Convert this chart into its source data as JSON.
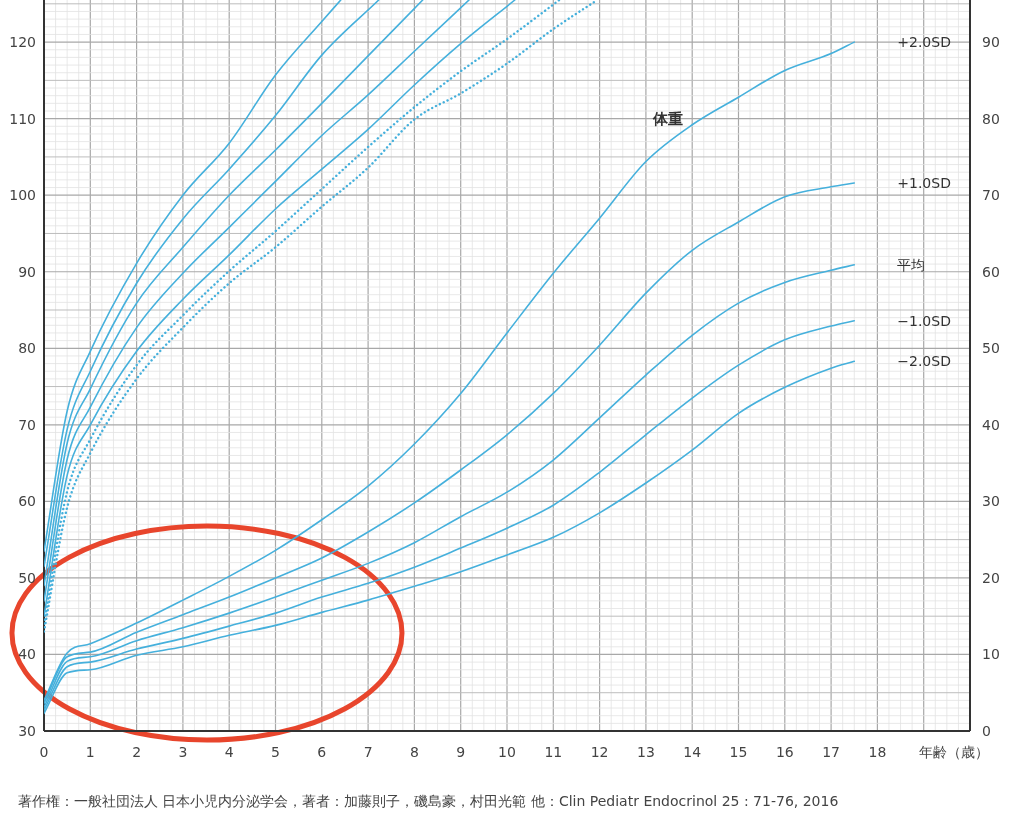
{
  "chart_data": {
    "type": "line",
    "xlabel": "年齢（歳）",
    "xlim": [
      0,
      20
    ],
    "xticks": [
      0,
      1,
      2,
      3,
      4,
      5,
      6,
      7,
      8,
      9,
      10,
      11,
      12,
      13,
      14,
      15,
      16,
      17,
      18
    ],
    "ylim": [
      30,
      125.5
    ],
    "yticks": [
      30,
      40,
      50,
      60,
      70,
      80,
      90,
      100,
      110,
      120
    ],
    "y2lim": [
      0,
      95.5
    ],
    "y2ticks": [
      0,
      10,
      20,
      30,
      40,
      50,
      60,
      70,
      80,
      90
    ],
    "grid": true,
    "series": [
      {
        "color": "#45b0dc",
        "line_style": "solid",
        "x": [
          0,
          0.5,
          1,
          2,
          3,
          4,
          5,
          6,
          6.41
        ],
        "values": [
          53.5,
          71.8,
          79.6,
          91.1,
          100.0,
          106.8,
          115.7,
          122.7,
          125.5
        ]
      },
      {
        "color": "#45b0dc",
        "line_style": "solid",
        "x": [
          0,
          0.5,
          1,
          2,
          3,
          4,
          5,
          6,
          7.23
        ],
        "values": [
          51.5,
          69.4,
          77.0,
          88.5,
          96.9,
          103.4,
          110.4,
          118.3,
          125.5
        ]
      },
      {
        "color": "#45b0dc",
        "line_style": "solid",
        "x": [
          0,
          0.5,
          1,
          2,
          3,
          4,
          5,
          6,
          7,
          8.18
        ],
        "values": [
          49.0,
          67.6,
          74.7,
          85.9,
          93.2,
          100.0,
          105.9,
          112.0,
          118.2,
          125.5
        ]
      },
      {
        "color": "#45b0dc",
        "line_style": "solid",
        "x": [
          0,
          0.5,
          1,
          2,
          3,
          4,
          5,
          6,
          7,
          8,
          9.18
        ],
        "values": [
          47.0,
          65.5,
          72.3,
          82.7,
          89.8,
          95.8,
          101.8,
          107.8,
          113.1,
          118.8,
          125.5
        ]
      },
      {
        "color": "#45b0dc",
        "line_style": "solid",
        "x": [
          0,
          0.5,
          1,
          2,
          3,
          4,
          5,
          6,
          7,
          8,
          9,
          10.17
        ],
        "values": [
          45.0,
          63.4,
          70.0,
          79.6,
          86.4,
          92.2,
          98.2,
          103.4,
          108.6,
          114.4,
          119.8,
          125.5
        ]
      },
      {
        "color": "#45b0dc",
        "line_style": "dotted",
        "x": [
          0,
          0.5,
          1,
          2,
          3,
          4,
          5,
          6,
          7,
          8,
          9,
          10,
          11.13
        ],
        "values": [
          44.0,
          61.3,
          68.1,
          77.8,
          84.3,
          90.1,
          95.3,
          100.8,
          106.3,
          111.5,
          116.2,
          120.4,
          125.5
        ]
      },
      {
        "color": "#45b0dc",
        "line_style": "dotted",
        "x": [
          0,
          0.5,
          1,
          2,
          3,
          4,
          5,
          6,
          7,
          8,
          9,
          10,
          11,
          11.95
        ],
        "values": [
          43.0,
          59.2,
          66.3,
          76.0,
          82.7,
          88.5,
          93.2,
          98.5,
          103.6,
          109.9,
          113.3,
          117.2,
          121.7,
          125.5
        ]
      },
      {
        "name": "+2.0SD",
        "axis": "y2",
        "color": "#45b0dc",
        "line_style": "solid",
        "x": [
          0,
          0.5,
          1,
          2,
          3,
          4,
          5,
          6,
          7,
          8,
          9,
          10,
          11,
          12,
          13,
          14,
          15,
          16,
          17,
          17.5
        ],
        "values": [
          4.0,
          10.2,
          11.4,
          14.1,
          17.1,
          20.2,
          23.6,
          27.6,
          32.0,
          37.5,
          44.1,
          52.0,
          59.8,
          67.0,
          74.4,
          79.2,
          82.8,
          86.3,
          88.5,
          90.0
        ]
      },
      {
        "name": "+1.0SD",
        "axis": "y2",
        "color": "#45b0dc",
        "line_style": "solid",
        "x": [
          0,
          0.5,
          1,
          2,
          3,
          4,
          5,
          6,
          7,
          8,
          9,
          10,
          11,
          12,
          13,
          14,
          15,
          16,
          17,
          17.5
        ],
        "values": [
          3.6,
          9.7,
          10.3,
          12.9,
          15.2,
          17.5,
          20.0,
          22.6,
          26.0,
          29.8,
          34.1,
          38.7,
          44.1,
          50.4,
          57.2,
          62.8,
          66.5,
          69.8,
          71.1,
          71.6
        ]
      },
      {
        "name": "平均",
        "axis": "y2",
        "color": "#45b0dc",
        "line_style": "solid",
        "x": [
          0,
          0.5,
          1,
          2,
          3,
          4,
          5,
          6,
          7,
          8,
          9,
          10,
          11,
          12,
          13,
          14,
          15,
          16,
          17,
          17.5
        ],
        "values": [
          3.1,
          9.1,
          9.7,
          11.8,
          13.5,
          15.4,
          17.5,
          19.7,
          21.9,
          24.6,
          28.0,
          31.2,
          35.4,
          40.9,
          46.5,
          51.7,
          55.9,
          58.6,
          60.2,
          60.9
        ]
      },
      {
        "name": "−1.0SD",
        "axis": "y2",
        "color": "#45b0dc",
        "line_style": "solid",
        "x": [
          0,
          0.5,
          1,
          2,
          3,
          4,
          5,
          6,
          7,
          8,
          9,
          10,
          11,
          12,
          13,
          14,
          15,
          16,
          17,
          17.5
        ],
        "values": [
          2.7,
          8.4,
          9.0,
          10.7,
          12.1,
          13.7,
          15.4,
          17.5,
          19.3,
          21.4,
          23.9,
          26.5,
          29.5,
          33.8,
          38.7,
          43.5,
          47.8,
          51.1,
          52.9,
          53.6
        ]
      },
      {
        "name": "−2.0SD",
        "axis": "y2",
        "color": "#45b0dc",
        "line_style": "solid",
        "x": [
          0,
          0.5,
          1,
          2,
          3,
          4,
          5,
          6,
          7,
          8,
          9,
          10,
          11,
          12,
          13,
          14,
          15,
          16,
          17,
          17.5
        ],
        "values": [
          2.3,
          7.6,
          8.0,
          9.9,
          11.0,
          12.5,
          13.8,
          15.5,
          17.1,
          18.9,
          20.8,
          23.0,
          25.3,
          28.5,
          32.4,
          36.7,
          41.5,
          44.9,
          47.4,
          48.3
        ]
      }
    ],
    "annotations": [
      "体重",
      "著作権：一般社団法人 日本小児内分泌学会，著者：加藤則子，磯島豪，村田光範 他：Clin Pediatr Endocrinol 25 : 71-76, 2016"
    ]
  }
}
